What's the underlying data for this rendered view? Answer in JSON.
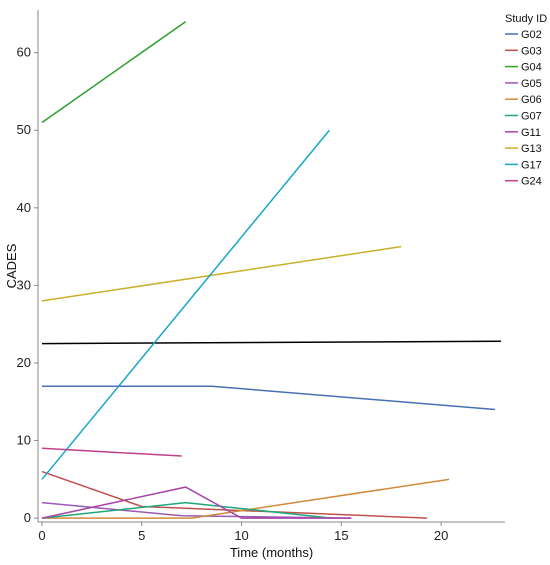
{
  "chart_data": {
    "type": "line",
    "xlabel": "Time (months)",
    "ylabel": "CADES",
    "xlim": [
      -0.2,
      23.2
    ],
    "ylim": [
      -0.5,
      65.5
    ],
    "xticks": [
      0,
      5,
      10,
      15,
      20
    ],
    "yticks": [
      0,
      10,
      20,
      30,
      40,
      50,
      60
    ],
    "grid": false,
    "legend_title": "Study ID",
    "legend_position": "right",
    "series": [
      {
        "name": "G02",
        "color": "#4a6fb5",
        "x": [
          0,
          8.5,
          22.7
        ],
        "y": [
          17,
          17,
          14
        ]
      },
      {
        "name": "G03",
        "color": "#c0504d",
        "x": [
          0,
          5,
          19.3
        ],
        "y": [
          6,
          1.5,
          0
        ]
      },
      {
        "name": "G04",
        "color": "#2ca02c",
        "x": [
          0,
          7.2
        ],
        "y": [
          51,
          64
        ]
      },
      {
        "name": "G05",
        "color": "#9b59b6",
        "x": [
          0,
          7,
          15.5
        ],
        "y": [
          2,
          0.3,
          0
        ]
      },
      {
        "name": "G06",
        "color": "#d08a3c",
        "x": [
          0,
          7.5,
          20.4
        ],
        "y": [
          0,
          0,
          5
        ]
      },
      {
        "name": "G07",
        "color": "#1fa67a",
        "x": [
          0,
          7.2,
          14.5
        ],
        "y": [
          0,
          2,
          0
        ]
      },
      {
        "name": "G11",
        "color": "#a845a8",
        "x": [
          0,
          7.2,
          10,
          15.5
        ],
        "y": [
          0,
          4,
          0,
          0
        ]
      },
      {
        "name": "G13",
        "color": "#c8b02a",
        "x": [
          0,
          18
        ],
        "y": [
          28,
          35
        ]
      },
      {
        "name": "G17",
        "color": "#17a8c4",
        "x": [
          0,
          14.4
        ],
        "y": [
          5,
          50
        ]
      },
      {
        "name": "G24",
        "color": "#c0408a",
        "x": [
          0,
          7
        ],
        "y": [
          9,
          8
        ]
      }
    ],
    "reference_line": {
      "color": "#000000",
      "x": [
        0,
        23
      ],
      "y": [
        22.5,
        22.8
      ]
    }
  }
}
